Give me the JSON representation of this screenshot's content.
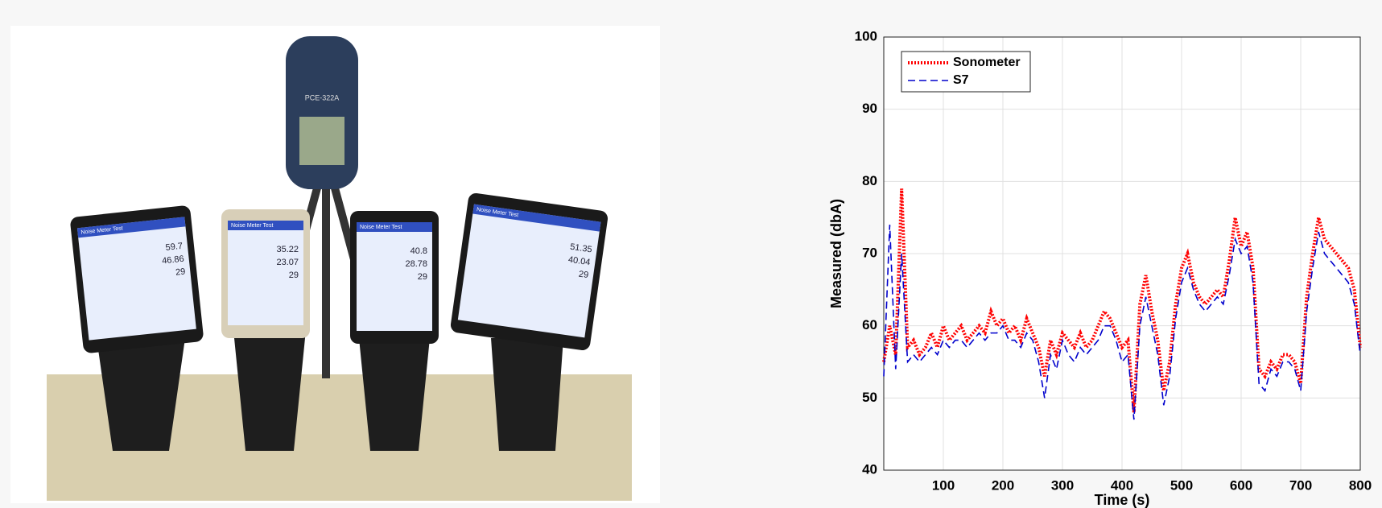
{
  "photo": {
    "meter_label": "PCE-322A",
    "phones": [
      {
        "app_title": "Noise Meter Test",
        "readings": [
          "59.7",
          "46.86",
          "29"
        ]
      },
      {
        "app_title": "Noise Meter Test",
        "readings": [
          "35.22",
          "23.07",
          "29"
        ]
      },
      {
        "app_title": "Noise Meter Test",
        "readings": [
          "40.8",
          "28.78",
          "29"
        ]
      },
      {
        "app_title": "Noise Meter Test",
        "readings": [
          "51.35",
          "40.04",
          "29"
        ]
      }
    ]
  },
  "chart_data": {
    "type": "line",
    "xlabel": "Time (s)",
    "ylabel": "Measured (dbA)",
    "xlim": [
      0,
      800
    ],
    "ylim": [
      40,
      100
    ],
    "xticks": [
      100,
      200,
      300,
      400,
      500,
      600,
      700,
      800
    ],
    "yticks": [
      40,
      50,
      60,
      70,
      80,
      90,
      100
    ],
    "grid": true,
    "legend": "upper left",
    "x": [
      0,
      10,
      20,
      30,
      40,
      50,
      60,
      70,
      80,
      90,
      100,
      110,
      120,
      130,
      140,
      150,
      160,
      170,
      180,
      190,
      200,
      210,
      220,
      230,
      240,
      250,
      260,
      270,
      280,
      290,
      300,
      310,
      320,
      330,
      340,
      350,
      360,
      370,
      380,
      390,
      400,
      410,
      420,
      430,
      440,
      450,
      460,
      470,
      480,
      490,
      500,
      510,
      520,
      530,
      540,
      550,
      560,
      570,
      580,
      590,
      600,
      610,
      620,
      630,
      640,
      650,
      660,
      670,
      680,
      690,
      700,
      710,
      720,
      730,
      740,
      750,
      760,
      770,
      780,
      790,
      800
    ],
    "series": [
      {
        "name": "Sonometer",
        "color": "#ff0000",
        "values": [
          55,
          60,
          56,
          79,
          57,
          58,
          56,
          57,
          59,
          57,
          60,
          58,
          59,
          60,
          58,
          59,
          60,
          59,
          62,
          60,
          61,
          59,
          60,
          58,
          61,
          59,
          57,
          53,
          58,
          56,
          59,
          58,
          57,
          59,
          57,
          58,
          60,
          62,
          61,
          59,
          57,
          58,
          48,
          63,
          67,
          62,
          58,
          51,
          55,
          63,
          68,
          70,
          66,
          64,
          63,
          64,
          65,
          64,
          69,
          75,
          71,
          73,
          68,
          54,
          53,
          55,
          54,
          56,
          56,
          55,
          52,
          64,
          70,
          75,
          72,
          71,
          70,
          69,
          68,
          65,
          57
        ]
      },
      {
        "name": "S7",
        "color": "#0000cc",
        "values": [
          53,
          74,
          54,
          70,
          55,
          56,
          55,
          56,
          57,
          56,
          58,
          57,
          58,
          58,
          57,
          58,
          59,
          58,
          59,
          59,
          60,
          58,
          58,
          57,
          59,
          58,
          55,
          50,
          56,
          54,
          58,
          56,
          55,
          57,
          56,
          57,
          58,
          60,
          60,
          58,
          55,
          56,
          47,
          60,
          64,
          60,
          56,
          49,
          53,
          61,
          66,
          68,
          65,
          63,
          62,
          63,
          64,
          63,
          67,
          72,
          70,
          71,
          66,
          52,
          51,
          54,
          53,
          55,
          55,
          54,
          51,
          62,
          68,
          73,
          70,
          69,
          68,
          67,
          66,
          63,
          56
        ]
      }
    ]
  }
}
